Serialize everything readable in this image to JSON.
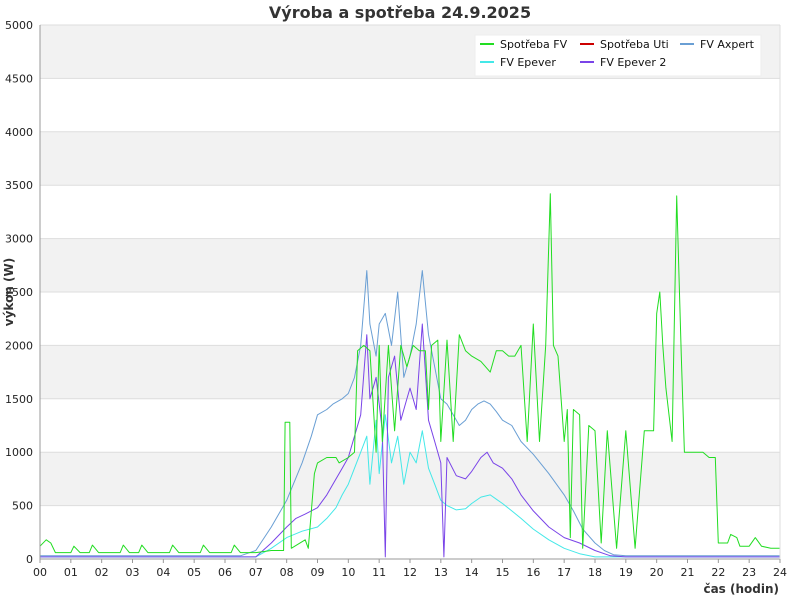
{
  "chart_data": {
    "type": "line",
    "title": "Výroba a spotřeba 24.9.2025",
    "xlabel": "čas (hodin)",
    "ylabel": "výkon (W)",
    "xlim": [
      0,
      24
    ],
    "ylim": [
      0,
      5000
    ],
    "x_ticks": [
      "00",
      "01",
      "02",
      "03",
      "04",
      "05",
      "06",
      "07",
      "08",
      "09",
      "10",
      "11",
      "12",
      "13",
      "14",
      "15",
      "16",
      "17",
      "18",
      "19",
      "20",
      "21",
      "22",
      "23",
      "24"
    ],
    "y_ticks": [
      0,
      500,
      1000,
      1500,
      2000,
      2500,
      3000,
      3500,
      4000,
      4500,
      5000
    ],
    "grid": true,
    "legend_position": "top-right",
    "series": [
      {
        "name": "Spotřeba FV",
        "color": "#22dd22",
        "points": [
          [
            0.0,
            120
          ],
          [
            0.2,
            180
          ],
          [
            0.35,
            150
          ],
          [
            0.5,
            60
          ],
          [
            1.0,
            60
          ],
          [
            1.1,
            120
          ],
          [
            1.3,
            60
          ],
          [
            1.6,
            60
          ],
          [
            1.7,
            130
          ],
          [
            1.9,
            60
          ],
          [
            2.6,
            60
          ],
          [
            2.7,
            130
          ],
          [
            2.9,
            60
          ],
          [
            3.2,
            60
          ],
          [
            3.3,
            130
          ],
          [
            3.5,
            60
          ],
          [
            4.2,
            60
          ],
          [
            4.3,
            130
          ],
          [
            4.5,
            60
          ],
          [
            5.2,
            60
          ],
          [
            5.3,
            130
          ],
          [
            5.5,
            60
          ],
          [
            6.2,
            60
          ],
          [
            6.3,
            130
          ],
          [
            6.5,
            60
          ],
          [
            7.0,
            60
          ],
          [
            7.5,
            80
          ],
          [
            7.9,
            80
          ],
          [
            7.95,
            1280
          ],
          [
            8.1,
            1280
          ],
          [
            8.15,
            100
          ],
          [
            8.6,
            180
          ],
          [
            8.7,
            100
          ],
          [
            8.9,
            800
          ],
          [
            9.0,
            900
          ],
          [
            9.3,
            950
          ],
          [
            9.6,
            950
          ],
          [
            9.7,
            900
          ],
          [
            10.0,
            950
          ],
          [
            10.2,
            1000
          ],
          [
            10.3,
            1950
          ],
          [
            10.5,
            2000
          ],
          [
            10.7,
            1950
          ],
          [
            10.9,
            1000
          ],
          [
            11.0,
            2000
          ],
          [
            11.1,
            1100
          ],
          [
            11.3,
            2000
          ],
          [
            11.5,
            1200
          ],
          [
            11.7,
            2000
          ],
          [
            11.9,
            1800
          ],
          [
            12.1,
            2000
          ],
          [
            12.3,
            1950
          ],
          [
            12.5,
            1950
          ],
          [
            12.6,
            1400
          ],
          [
            12.7,
            2000
          ],
          [
            12.9,
            2050
          ],
          [
            13.0,
            1100
          ],
          [
            13.2,
            2050
          ],
          [
            13.4,
            1100
          ],
          [
            13.6,
            2100
          ],
          [
            13.8,
            1950
          ],
          [
            14.0,
            1900
          ],
          [
            14.3,
            1850
          ],
          [
            14.6,
            1750
          ],
          [
            14.8,
            1950
          ],
          [
            15.0,
            1950
          ],
          [
            15.2,
            1900
          ],
          [
            15.4,
            1900
          ],
          [
            15.6,
            2000
          ],
          [
            15.8,
            1100
          ],
          [
            16.0,
            2200
          ],
          [
            16.2,
            1100
          ],
          [
            16.4,
            2000
          ],
          [
            16.55,
            3420
          ],
          [
            16.65,
            2000
          ],
          [
            16.8,
            1900
          ],
          [
            16.9,
            1500
          ],
          [
            17.0,
            1100
          ],
          [
            17.1,
            1400
          ],
          [
            17.2,
            200
          ],
          [
            17.3,
            1400
          ],
          [
            17.5,
            1350
          ],
          [
            17.6,
            100
          ],
          [
            17.8,
            1250
          ],
          [
            18.0,
            1200
          ],
          [
            18.2,
            150
          ],
          [
            18.4,
            1200
          ],
          [
            18.7,
            100
          ],
          [
            19.0,
            1200
          ],
          [
            19.3,
            100
          ],
          [
            19.6,
            1200
          ],
          [
            19.9,
            1200
          ],
          [
            20.0,
            2300
          ],
          [
            20.1,
            2500
          ],
          [
            20.2,
            2000
          ],
          [
            20.3,
            1600
          ],
          [
            20.5,
            1100
          ],
          [
            20.65,
            3400
          ],
          [
            20.8,
            1900
          ],
          [
            20.9,
            1000
          ],
          [
            21.1,
            1000
          ],
          [
            21.3,
            1000
          ],
          [
            21.5,
            1000
          ],
          [
            21.7,
            950
          ],
          [
            21.9,
            950
          ],
          [
            22.0,
            150
          ],
          [
            22.3,
            150
          ],
          [
            22.4,
            230
          ],
          [
            22.6,
            200
          ],
          [
            22.7,
            120
          ],
          [
            23.0,
            120
          ],
          [
            23.2,
            200
          ],
          [
            23.4,
            120
          ],
          [
            23.7,
            100
          ],
          [
            24.0,
            100
          ]
        ]
      },
      {
        "name": "Spotřeba Uti",
        "color": "#cc0000",
        "points": []
      },
      {
        "name": "FV Axpert",
        "color": "#6a9fd4",
        "points": [
          [
            0.0,
            30
          ],
          [
            6.5,
            30
          ],
          [
            7.0,
            80
          ],
          [
            7.5,
            300
          ],
          [
            8.0,
            550
          ],
          [
            8.5,
            900
          ],
          [
            8.8,
            1150
          ],
          [
            9.0,
            1350
          ],
          [
            9.3,
            1400
          ],
          [
            9.5,
            1450
          ],
          [
            9.8,
            1500
          ],
          [
            10.0,
            1550
          ],
          [
            10.2,
            1700
          ],
          [
            10.4,
            2000
          ],
          [
            10.6,
            2700
          ],
          [
            10.7,
            2200
          ],
          [
            10.9,
            1900
          ],
          [
            11.0,
            2200
          ],
          [
            11.2,
            2300
          ],
          [
            11.4,
            2000
          ],
          [
            11.6,
            2500
          ],
          [
            11.8,
            1700
          ],
          [
            12.0,
            1900
          ],
          [
            12.2,
            2200
          ],
          [
            12.4,
            2700
          ],
          [
            12.6,
            2100
          ],
          [
            12.8,
            1800
          ],
          [
            13.0,
            1500
          ],
          [
            13.2,
            1450
          ],
          [
            13.4,
            1350
          ],
          [
            13.6,
            1250
          ],
          [
            13.8,
            1300
          ],
          [
            14.0,
            1400
          ],
          [
            14.2,
            1450
          ],
          [
            14.4,
            1480
          ],
          [
            14.6,
            1450
          ],
          [
            14.8,
            1380
          ],
          [
            15.0,
            1300
          ],
          [
            15.3,
            1250
          ],
          [
            15.6,
            1100
          ],
          [
            16.0,
            980
          ],
          [
            16.5,
            800
          ],
          [
            17.0,
            600
          ],
          [
            17.3,
            450
          ],
          [
            17.6,
            280
          ],
          [
            18.0,
            150
          ],
          [
            18.3,
            80
          ],
          [
            18.6,
            40
          ],
          [
            19.0,
            30
          ],
          [
            24.0,
            30
          ]
        ]
      },
      {
        "name": "FV Epever",
        "color": "#44e8e8",
        "points": [
          [
            0.0,
            20
          ],
          [
            7.0,
            20
          ],
          [
            7.5,
            100
          ],
          [
            8.0,
            200
          ],
          [
            8.5,
            260
          ],
          [
            9.0,
            300
          ],
          [
            9.3,
            380
          ],
          [
            9.6,
            480
          ],
          [
            9.8,
            600
          ],
          [
            10.0,
            700
          ],
          [
            10.2,
            850
          ],
          [
            10.4,
            1000
          ],
          [
            10.6,
            1150
          ],
          [
            10.7,
            700
          ],
          [
            10.9,
            1300
          ],
          [
            11.0,
            800
          ],
          [
            11.2,
            1350
          ],
          [
            11.4,
            900
          ],
          [
            11.6,
            1150
          ],
          [
            11.8,
            700
          ],
          [
            12.0,
            1000
          ],
          [
            12.2,
            900
          ],
          [
            12.4,
            1200
          ],
          [
            12.6,
            850
          ],
          [
            12.8,
            700
          ],
          [
            13.0,
            550
          ],
          [
            13.2,
            500
          ],
          [
            13.5,
            460
          ],
          [
            13.8,
            470
          ],
          [
            14.0,
            520
          ],
          [
            14.3,
            580
          ],
          [
            14.6,
            600
          ],
          [
            14.8,
            560
          ],
          [
            15.0,
            520
          ],
          [
            15.3,
            450
          ],
          [
            15.6,
            380
          ],
          [
            16.0,
            280
          ],
          [
            16.5,
            180
          ],
          [
            17.0,
            100
          ],
          [
            17.5,
            50
          ],
          [
            18.0,
            20
          ],
          [
            24.0,
            20
          ]
        ]
      },
      {
        "name": "FV Epever 2",
        "color": "#7a44e8",
        "points": [
          [
            0.0,
            20
          ],
          [
            7.0,
            20
          ],
          [
            7.5,
            150
          ],
          [
            8.0,
            300
          ],
          [
            8.3,
            380
          ],
          [
            8.6,
            420
          ],
          [
            9.0,
            480
          ],
          [
            9.3,
            600
          ],
          [
            9.5,
            700
          ],
          [
            9.8,
            850
          ],
          [
            10.0,
            950
          ],
          [
            10.2,
            1150
          ],
          [
            10.4,
            1350
          ],
          [
            10.6,
            2100
          ],
          [
            10.7,
            1500
          ],
          [
            10.9,
            1700
          ],
          [
            11.1,
            1200
          ],
          [
            11.2,
            20
          ],
          [
            11.3,
            1700
          ],
          [
            11.5,
            1900
          ],
          [
            11.7,
            1300
          ],
          [
            11.9,
            1500
          ],
          [
            12.0,
            1600
          ],
          [
            12.2,
            1400
          ],
          [
            12.4,
            2200
          ],
          [
            12.6,
            1300
          ],
          [
            12.8,
            1100
          ],
          [
            13.0,
            900
          ],
          [
            13.1,
            20
          ],
          [
            13.2,
            950
          ],
          [
            13.5,
            780
          ],
          [
            13.8,
            750
          ],
          [
            14.0,
            820
          ],
          [
            14.3,
            950
          ],
          [
            14.5,
            1000
          ],
          [
            14.7,
            900
          ],
          [
            15.0,
            850
          ],
          [
            15.3,
            750
          ],
          [
            15.6,
            600
          ],
          [
            16.0,
            450
          ],
          [
            16.5,
            300
          ],
          [
            17.0,
            200
          ],
          [
            17.5,
            150
          ],
          [
            18.0,
            80
          ],
          [
            18.5,
            30
          ],
          [
            19.0,
            20
          ],
          [
            24.0,
            20
          ]
        ]
      }
    ]
  }
}
